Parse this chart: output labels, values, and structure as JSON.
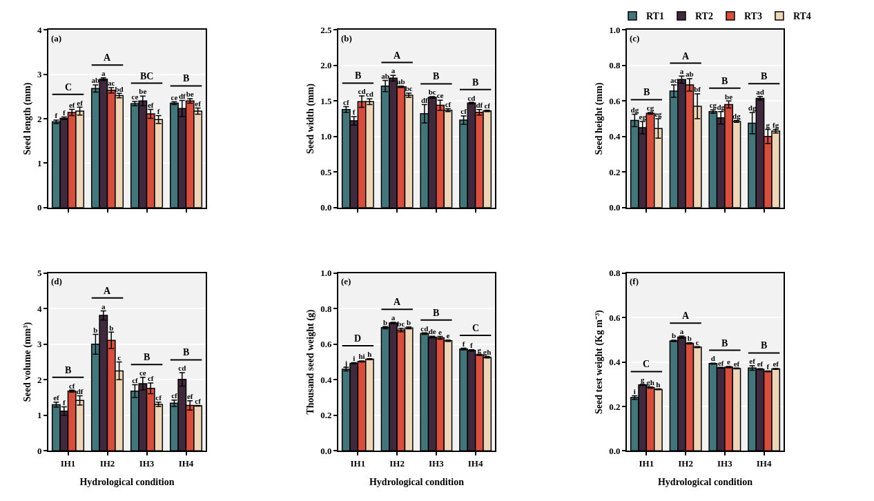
{
  "chart_data": [
    {
      "type": "bar",
      "title": "(a)",
      "ylabel": "Seed length (mm)",
      "categories": [
        null,
        null,
        null,
        null
      ],
      "ylim": [
        0,
        4
      ],
      "yticks": [
        0,
        1,
        2,
        3,
        4
      ],
      "grid": "y",
      "tick_labels": "y",
      "series": [
        {
          "color": "#44757a",
          "values": [
            1.93,
            2.68,
            2.34,
            2.35
          ],
          "errors": [
            0.04,
            0.08,
            0.05,
            0.03
          ],
          "value_labels": [
            "f",
            "ab",
            "ce",
            "ce"
          ]
        },
        {
          "color": "#41293d",
          "values": [
            2.01,
            2.89,
            2.4,
            2.23
          ],
          "errors": [
            0.03,
            0.03,
            0.11,
            0.18
          ],
          "value_labels": [
            "f",
            "a",
            "be",
            "df"
          ]
        },
        {
          "color": "#d64f3e",
          "values": [
            2.14,
            2.64,
            2.11,
            2.4
          ],
          "errors": [
            0.07,
            0.06,
            0.1,
            0.05
          ],
          "value_labels": [
            "ef",
            "ac",
            "ef",
            "be"
          ]
        },
        {
          "color": "#efd5b8",
          "values": [
            2.17,
            2.52,
            1.98,
            2.17
          ],
          "errors": [
            0.09,
            0.05,
            0.09,
            0.07
          ],
          "value_labels": [
            "ef",
            "bd",
            "f",
            "ef"
          ]
        }
      ],
      "annotations": [
        "C",
        "A",
        "BC",
        "B"
      ]
    },
    {
      "type": "bar",
      "title": "(b)",
      "ylabel": "Seed width (mm)",
      "categories": [
        null,
        null,
        null,
        null
      ],
      "ylim": [
        0,
        2.5
      ],
      "yticks": [
        {
          "value": 0,
          "label": "0.0"
        },
        0.5,
        {
          "value": 1,
          "label": "1.0"
        },
        1.5,
        {
          "value": 2,
          "label": "2.0"
        },
        2.5
      ],
      "grid": "y",
      "tick_labels": "y",
      "series": [
        {
          "color": "#44757a",
          "values": [
            1.38,
            1.71,
            1.32,
            1.23
          ],
          "errors": [
            0.04,
            0.08,
            0.13,
            0.06
          ],
          "value_labels": [
            "cf",
            "ab",
            "df",
            "cf"
          ]
        },
        {
          "color": "#41293d",
          "values": [
            1.22,
            1.82,
            1.55,
            1.47
          ],
          "errors": [
            0.06,
            0.04,
            0.01,
            0.01
          ],
          "value_labels": [
            "f",
            "a",
            "bc",
            "cd"
          ]
        },
        {
          "color": "#d64f3e",
          "values": [
            1.49,
            1.7,
            1.44,
            1.34
          ],
          "errors": [
            0.08,
            0.01,
            0.07,
            0.04
          ],
          "value_labels": [
            "cd",
            "ab",
            "ce",
            "df"
          ]
        },
        {
          "color": "#efd5b8",
          "values": [
            1.49,
            1.58,
            1.37,
            1.36
          ],
          "errors": [
            0.04,
            0.03,
            0.02,
            0.01
          ],
          "value_labels": [
            "cd",
            "bc",
            "cf",
            "cf"
          ]
        }
      ],
      "annotations": [
        "B",
        "A",
        "B",
        "B"
      ]
    },
    {
      "type": "bar",
      "title": "(c)",
      "ylabel": "Seed height (mm)",
      "categories": [
        null,
        null,
        null,
        null
      ],
      "ylim": [
        0,
        1
      ],
      "yticks": [
        {
          "value": 0,
          "label": "0.0"
        },
        0.2,
        0.4,
        0.6,
        0.8,
        {
          "value": 1,
          "label": "1.0"
        }
      ],
      "grid": "y",
      "tick_labels": "y",
      "legend": "top right",
      "series": [
        {
          "name": "RT1",
          "color": "#44757a",
          "values": [
            0.49,
            0.655,
            0.54,
            0.475
          ],
          "errors": [
            0.035,
            0.035,
            0.01,
            0.06
          ],
          "value_labels": [
            "dg",
            "ac",
            "cg",
            "dg"
          ]
        },
        {
          "name": "RT2",
          "color": "#41293d",
          "values": [
            0.45,
            0.72,
            0.505,
            0.615
          ],
          "errors": [
            0.035,
            0.02,
            0.035,
            0.01
          ],
          "value_labels": [
            "eg",
            "a",
            "dg",
            "ad"
          ]
        },
        {
          "name": "RT3",
          "color": "#d64f3e",
          "values": [
            0.53,
            0.69,
            0.58,
            0.4
          ],
          "errors": [
            0.005,
            0.035,
            0.02,
            0.04
          ],
          "value_labels": [
            "cg",
            "ab",
            "be",
            "g"
          ]
        },
        {
          "name": "RT4",
          "color": "#efd5b8",
          "values": [
            0.445,
            0.57,
            0.485,
            0.43
          ],
          "errors": [
            0.055,
            0.07,
            0.005,
            0.01
          ],
          "value_labels": [
            "eg",
            "bf",
            "dg",
            "fg"
          ]
        }
      ],
      "annotations": [
        "B",
        "A",
        "B",
        "B"
      ]
    },
    {
      "type": "bar",
      "title": "(d)",
      "xlabel": "Hydrological condition",
      "ylabel": "Seed volume (mm³)",
      "categories": [
        "IH1",
        "IH2",
        "IH3",
        "IH4"
      ],
      "ylim": [
        0,
        5
      ],
      "yticks": [
        0,
        1,
        2,
        3,
        4,
        5
      ],
      "grid": "y",
      "series": [
        {
          "color": "#44757a",
          "values": [
            1.3,
            3.0,
            1.68,
            1.34
          ],
          "errors": [
            0.07,
            0.28,
            0.18,
            0.09
          ],
          "value_labels": [
            "ef",
            "b",
            "cf",
            "cf"
          ]
        },
        {
          "color": "#41293d",
          "values": [
            1.12,
            3.81,
            1.89,
            2.01
          ],
          "errors": [
            0.12,
            0.13,
            0.18,
            0.19
          ],
          "value_labels": [
            "f",
            "a",
            "ce",
            "cd"
          ]
        },
        {
          "color": "#d64f3e",
          "values": [
            1.68,
            3.11,
            1.76,
            1.28
          ],
          "errors": [
            0.03,
            0.23,
            0.15,
            0.13
          ],
          "value_labels": [
            "cf",
            "b",
            "cf",
            "ef"
          ]
        },
        {
          "color": "#efd5b8",
          "values": [
            1.42,
            2.25,
            1.31,
            1.27
          ],
          "errors": [
            0.13,
            0.25,
            0.06,
            0.01
          ],
          "value_labels": [
            "df",
            "c",
            "cf",
            "cf"
          ]
        }
      ],
      "annotations": [
        "B",
        "A",
        "B",
        "B"
      ]
    },
    {
      "type": "bar",
      "title": "(e)",
      "xlabel": "Hydrological condition",
      "ylabel": "Thousand seed weight (g)",
      "categories": [
        "IH1",
        "IH2",
        "IH3",
        "IH4"
      ],
      "ylim": [
        0,
        1
      ],
      "yticks": [
        {
          "value": 0,
          "label": "0.0"
        },
        0.2,
        0.4,
        0.6,
        0.8,
        {
          "value": 1,
          "label": "1.0"
        }
      ],
      "grid": "y",
      "series": [
        {
          "color": "#44757a",
          "values": [
            0.46,
            0.693,
            0.66,
            0.573
          ],
          "errors": [
            0.01,
            0.006,
            0.004,
            0.005
          ],
          "value_labels": [
            "j",
            "b",
            "cd",
            "f"
          ]
        },
        {
          "color": "#41293d",
          "values": [
            0.493,
            0.72,
            0.64,
            0.565
          ],
          "errors": [
            0.003,
            0.004,
            0.005,
            0.004
          ],
          "value_labels": [
            "i",
            "a",
            "de",
            "f"
          ]
        },
        {
          "color": "#d64f3e",
          "values": [
            0.503,
            0.68,
            0.636,
            0.54
          ],
          "errors": [
            0.003,
            0.01,
            0.008,
            0.003
          ],
          "value_labels": [
            "hi",
            "bc",
            "e",
            "g"
          ]
        },
        {
          "color": "#efd5b8",
          "values": [
            0.516,
            0.692,
            0.62,
            0.527
          ],
          "errors": [
            0.003,
            0.005,
            0.004,
            0.004
          ],
          "value_labels": [
            "h",
            "b",
            "e",
            "gh"
          ]
        }
      ],
      "annotations": [
        "D",
        "A",
        "B",
        "C"
      ]
    },
    {
      "type": "bar",
      "title": "(f)",
      "xlabel": "Hydrological condition",
      "ylabel": "Seed test weight (Kg m⁻³)",
      "categories": [
        "IH1",
        "IH2",
        "IH3",
        "IH4"
      ],
      "ylim": [
        0,
        0.8
      ],
      "yticks": [
        {
          "value": 0,
          "label": "0.0"
        },
        0.2,
        0.4,
        0.6,
        0.8
      ],
      "grid": "y",
      "series": [
        {
          "color": "#44757a",
          "values": [
            0.24,
            0.495,
            0.393,
            0.373
          ],
          "errors": [
            0.008,
            0.003,
            0.002,
            0.01
          ],
          "value_labels": [
            "i",
            "b",
            "d",
            "ef"
          ]
        },
        {
          "color": "#41293d",
          "values": [
            0.297,
            0.512,
            0.374,
            0.368
          ],
          "errors": [
            0.002,
            0.005,
            0.002,
            0.002
          ],
          "value_labels": [
            "g",
            "a",
            "ef",
            "ef"
          ]
        },
        {
          "color": "#d64f3e",
          "values": [
            0.285,
            0.484,
            0.377,
            0.358
          ],
          "errors": [
            0.003,
            0.003,
            0.003,
            0.002
          ],
          "value_labels": [
            "gh",
            "b",
            "e",
            "f"
          ]
        },
        {
          "color": "#efd5b8",
          "values": [
            0.277,
            0.467,
            0.371,
            0.369
          ],
          "errors": [
            0.002,
            0.002,
            0.002,
            0.002
          ],
          "value_labels": [
            "h",
            "c",
            "ef",
            "ef"
          ]
        }
      ],
      "annotations": [
        "C",
        "A",
        "B",
        "B"
      ]
    }
  ]
}
